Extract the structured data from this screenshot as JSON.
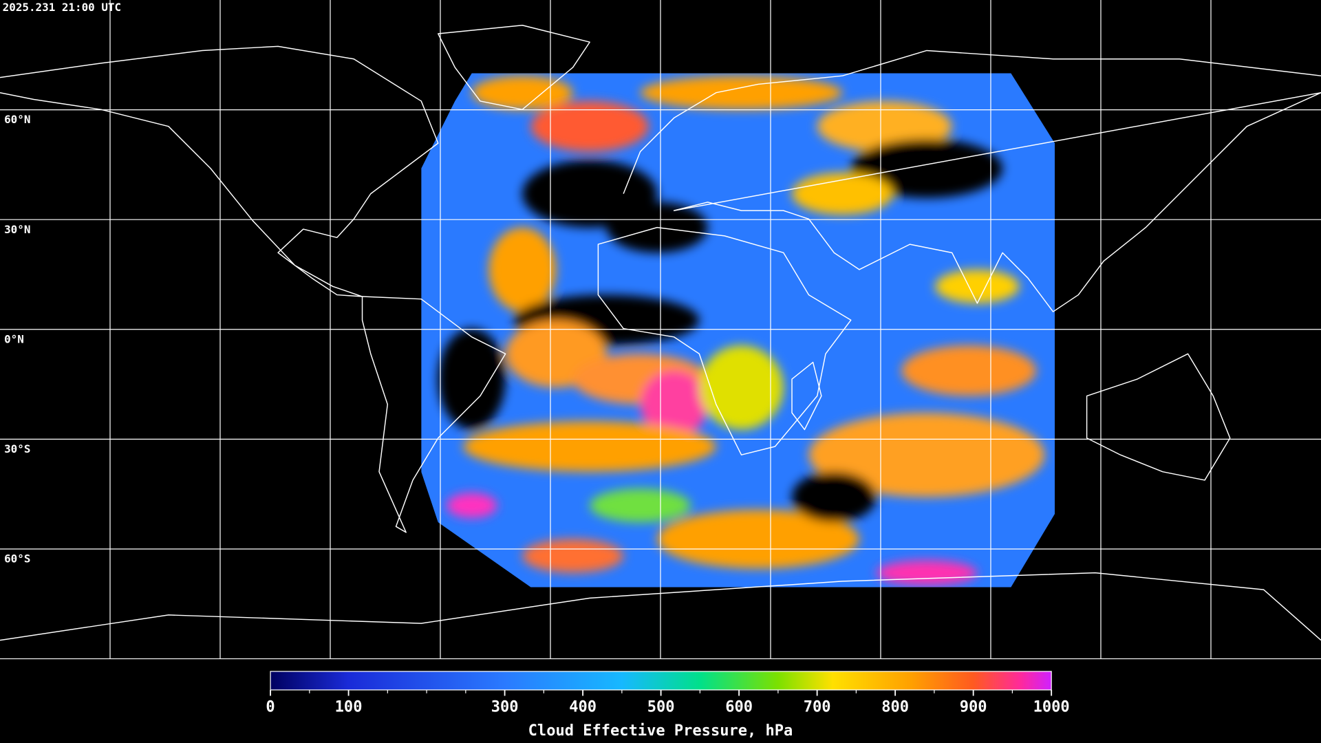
{
  "timestamp": "2025.231 21:00 UTC",
  "map": {
    "lat_labels": [
      {
        "value": 60,
        "label": "60°N"
      },
      {
        "value": 30,
        "label": "30°N"
      },
      {
        "value": 0,
        "label": "0°N"
      },
      {
        "value": -30,
        "label": "30°S"
      },
      {
        "value": -60,
        "label": "60°S"
      }
    ]
  },
  "colorbar": {
    "title": "Cloud Effective Pressure, hPa",
    "range": [
      0,
      1000
    ],
    "ticks": [
      0,
      100,
      300,
      400,
      500,
      600,
      700,
      800,
      900,
      1000
    ],
    "minor_ticks": [
      50,
      150,
      200,
      250,
      350,
      450,
      550,
      650,
      750,
      850,
      950
    ]
  }
}
